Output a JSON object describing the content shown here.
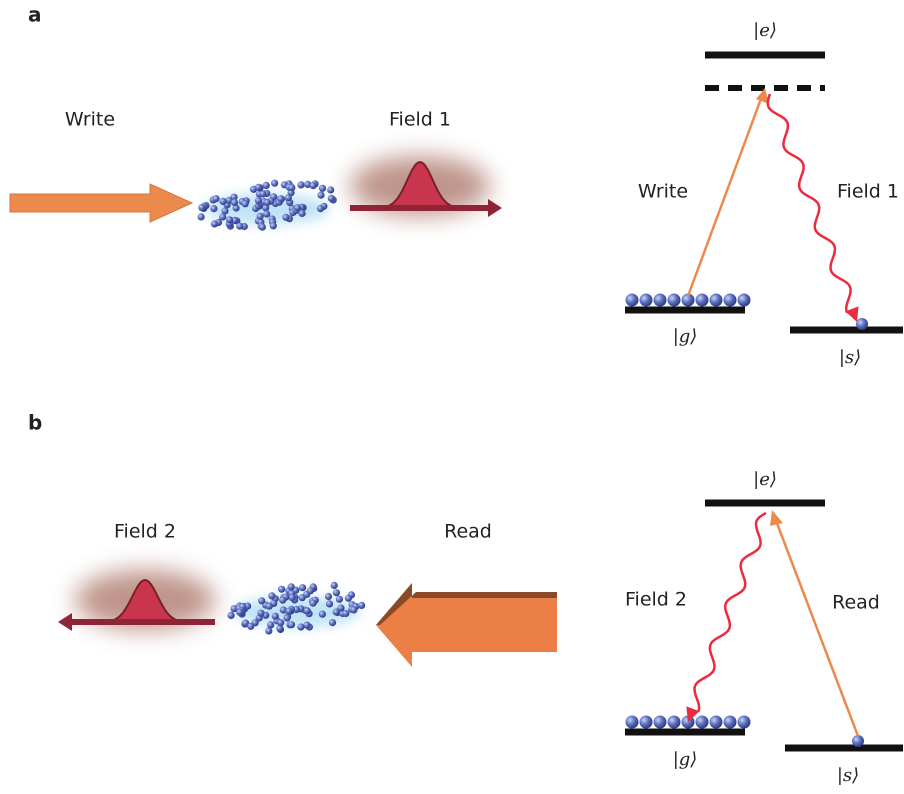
{
  "panels": [
    {
      "label": "a",
      "scene": {
        "beam_label": "Write",
        "pulse_label": "Field 1"
      },
      "levels": {
        "excited": "|e⟩",
        "ground": "|g⟩",
        "storage": "|s⟩",
        "pump_label": "Write",
        "emission_label": "Field 1"
      }
    },
    {
      "label": "b",
      "scene": {
        "pulse_label": "Field 2",
        "beam_label": "Read"
      },
      "levels": {
        "excited": "|e⟩",
        "ground": "|g⟩",
        "storage": "|s⟩",
        "emission_label": "Field 2",
        "pump_label": "Read"
      }
    }
  ]
}
